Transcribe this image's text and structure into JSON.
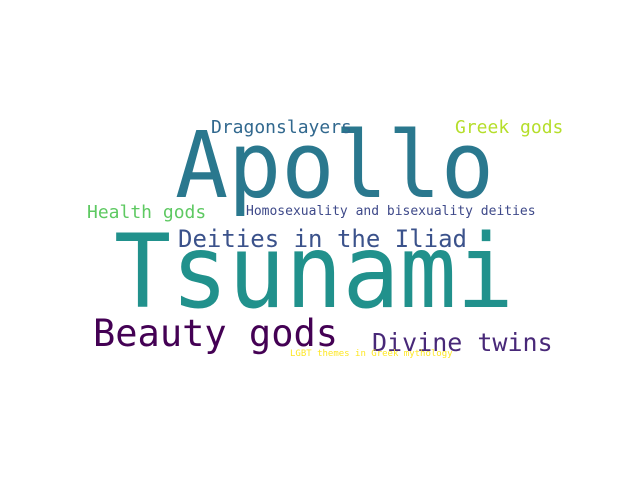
{
  "words": [
    {
      "text": "Tsunami",
      "color": "#21918c"
    },
    {
      "text": "Apollo",
      "color": "#2a788e"
    },
    {
      "text": "Beauty gods",
      "color": "#440154"
    },
    {
      "text": "Deities in the Iliad",
      "color": "#3b528b"
    },
    {
      "text": "Divine twins",
      "color": "#482878"
    },
    {
      "text": "Dragonslayers",
      "color": "#31688e"
    },
    {
      "text": "Greek gods",
      "color": "#b5de2b"
    },
    {
      "text": "Health gods",
      "color": "#5ec962"
    },
    {
      "text": "Homosexuality and bisexuality deities",
      "color": "#3e4989"
    },
    {
      "text": "LGBT themes in Greek mythology",
      "color": "#fde725"
    }
  ]
}
